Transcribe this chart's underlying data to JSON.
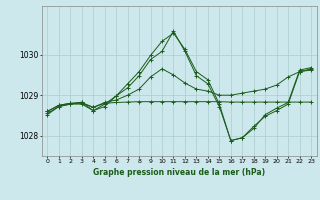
{
  "title": "Graphe pression niveau de la mer (hPa)",
  "background_color": "#cde8ec",
  "grid_color": "#aacccc",
  "line_color": "#1a5c1a",
  "xlim": [
    -0.5,
    23.5
  ],
  "ylim": [
    1027.5,
    1031.2
  ],
  "yticks": [
    1028,
    1029,
    1030
  ],
  "xticks": [
    0,
    1,
    2,
    3,
    4,
    5,
    6,
    7,
    8,
    9,
    10,
    11,
    12,
    13,
    14,
    15,
    16,
    17,
    18,
    19,
    20,
    21,
    22,
    23
  ],
  "series": [
    [
      1028.6,
      1028.75,
      1028.8,
      1028.8,
      1028.7,
      1028.8,
      1028.82,
      1028.83,
      1028.84,
      1028.84,
      1028.84,
      1028.84,
      1028.84,
      1028.84,
      1028.84,
      1028.84,
      1028.83,
      1028.83,
      1028.83,
      1028.83,
      1028.83,
      1028.83,
      1028.83,
      1028.83
    ],
    [
      1028.6,
      1028.75,
      1028.8,
      1028.82,
      1028.7,
      1028.82,
      1028.88,
      1029.0,
      1029.15,
      1029.45,
      1029.65,
      1029.5,
      1029.3,
      1029.15,
      1029.1,
      1029.0,
      1029.0,
      1029.05,
      1029.1,
      1029.15,
      1029.25,
      1029.45,
      1029.58,
      1029.65
    ],
    [
      1028.55,
      1028.72,
      1028.78,
      1028.83,
      1028.62,
      1028.78,
      1028.98,
      1029.18,
      1029.48,
      1029.88,
      1030.08,
      1030.58,
      1030.08,
      1029.48,
      1029.28,
      1028.72,
      1027.88,
      1027.95,
      1028.18,
      1028.52,
      1028.68,
      1028.82,
      1029.62,
      1029.68
    ],
    [
      1028.52,
      1028.72,
      1028.78,
      1028.78,
      1028.62,
      1028.72,
      1028.98,
      1029.28,
      1029.58,
      1029.98,
      1030.33,
      1030.53,
      1030.13,
      1029.58,
      1029.38,
      1028.78,
      1027.88,
      1027.95,
      1028.23,
      1028.48,
      1028.62,
      1028.78,
      1029.58,
      1029.62
    ]
  ]
}
